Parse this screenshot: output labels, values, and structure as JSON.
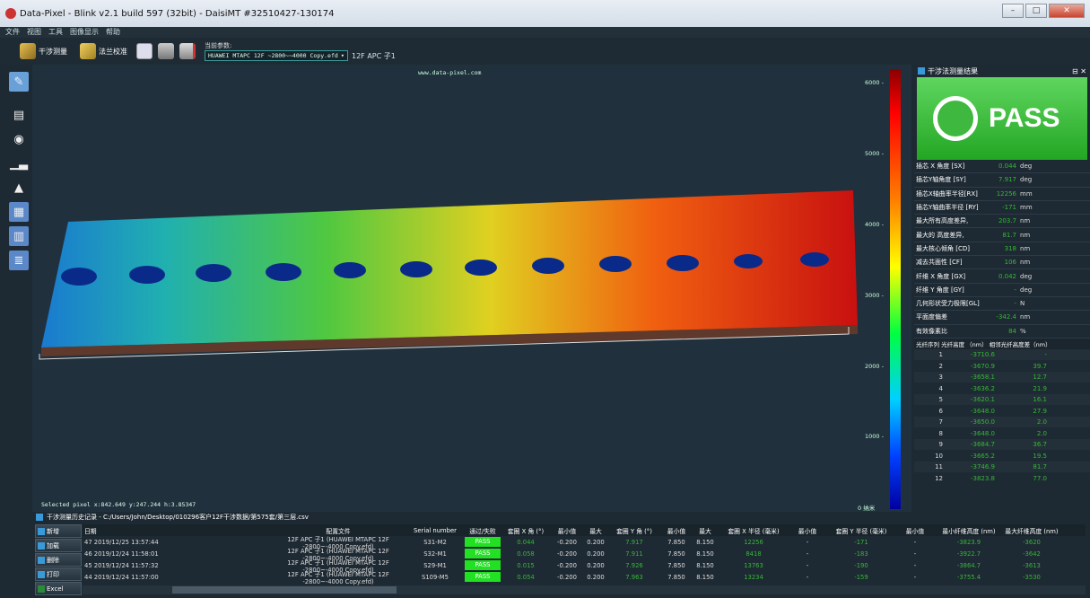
{
  "app": {
    "title": "Data-Pixel - Blink v2.1 build 597 (32bit) - DaisiMT #32510427-130174"
  },
  "menu": [
    "文件",
    "视图",
    "工具",
    "图像显示",
    "帮助"
  ],
  "toolbar": {
    "measure": "干涉测量",
    "calibrate": "法兰校准",
    "param_label": "当前参数:",
    "param_value": "HUAWEI MTAPC 12F ~2800~~4000 Copy.efd",
    "param_suffix": "12F APC 子1"
  },
  "view": {
    "url": "www.data-pixel.com",
    "selected_pixel": "Selected pixel x:842.649 y:247.244 h:3.85347",
    "colorbar_ticks": [
      "6000 -",
      "5000 -",
      "4000 -",
      "3000 -",
      "2000 -",
      "1000 -",
      "0 纳米"
    ]
  },
  "result": {
    "title": "干涉法测量结果",
    "status": "PASS",
    "colors": {
      "pass": "#22c022",
      "value_green": "#35b735"
    },
    "params": [
      {
        "k": "插芯 X 角度 [SX]",
        "v": "0.044",
        "u": "deg"
      },
      {
        "k": "插芯Y轴角度 [SY]",
        "v": "7.917",
        "u": "deg"
      },
      {
        "k": "插芯X轴曲率半径[RX]",
        "v": "12256",
        "u": "mm"
      },
      {
        "k": "插芯Y轴曲率半径 [RY]",
        "v": "-171",
        "u": "mm"
      },
      {
        "k": "最大所有高度差异,",
        "v": "203.7",
        "u": "nm"
      },
      {
        "k": "最大的 高度差异,",
        "v": "81.7",
        "u": "nm"
      },
      {
        "k": "最大核心倾角 [CD]",
        "v": "318",
        "u": "nm"
      },
      {
        "k": "减去共面性 [CF]",
        "v": "106",
        "u": "nm"
      },
      {
        "k": "纤维 X 角度 [GX]",
        "v": "0.042",
        "u": "deg"
      },
      {
        "k": "纤维 Y 角度 [GY]",
        "v": "-",
        "u": "deg"
      },
      {
        "k": "几何形状受力极限[GL]",
        "v": "-",
        "u": "N"
      },
      {
        "k": "平面度偏差",
        "v": "-342.4",
        "u": "nm"
      },
      {
        "k": "有效像素比",
        "v": "84",
        "u": "%"
      }
    ],
    "fiber_header": "光纤序列 光纤高度 （nm） 相邻光纤高度差（nm）",
    "fibers": [
      {
        "n": "1",
        "h": "-3710.6",
        "d": "-"
      },
      {
        "n": "2",
        "h": "-3670.9",
        "d": "39.7"
      },
      {
        "n": "3",
        "h": "-3658.1",
        "d": "12.7"
      },
      {
        "n": "4",
        "h": "-3636.2",
        "d": "21.9"
      },
      {
        "n": "5",
        "h": "-3620.1",
        "d": "16.1"
      },
      {
        "n": "6",
        "h": "-3648.0",
        "d": "27.9"
      },
      {
        "n": "7",
        "h": "-3650.0",
        "d": "2.0"
      },
      {
        "n": "8",
        "h": "-3648.0",
        "d": "2.0"
      },
      {
        "n": "9",
        "h": "-3684.7",
        "d": "36.7"
      },
      {
        "n": "10",
        "h": "-3665.2",
        "d": "19.5"
      },
      {
        "n": "11",
        "h": "-3746.9",
        "d": "81.7"
      },
      {
        "n": "12",
        "h": "-3823.8",
        "d": "77.0"
      }
    ]
  },
  "history": {
    "title": "干涉测量历史记录 - C:/Users/John/Desktop/010296客户12F干涉数据/第575套/第三层.csv",
    "buttons": [
      "新增",
      "加载",
      "删除",
      "打印",
      "Excel"
    ],
    "columns": [
      "日期",
      "配置文件",
      "Serial number",
      "通过/失败",
      "套圈 X 角 (°)",
      "最小值",
      "最大",
      "套圈 Y 角 (°)",
      "最小值",
      "最大",
      "套圈 X 半径 (毫米)",
      "最小值",
      "套圈 Y 半径 (毫米)",
      "最小值",
      "最小纤维高度 (nm)",
      "最大纤维高度 (nm)"
    ],
    "rows": [
      [
        "47 2019/12/25 13:57:44",
        "12F APC 子1 (HUAWEI MTAPC 12F -2800~-4000 Copy.efd)",
        "S31-M2",
        "PASS",
        "0.044",
        "-0.200",
        "0.200",
        "7.917",
        "7.850",
        "8.150",
        "12256",
        "-",
        "-171",
        "-",
        "-3823.9",
        "-3620"
      ],
      [
        "46 2019/12/24 11:58:01",
        "12F APC 子1 (HUAWEI MTAPC 12F -2800~-4000 Copy.efd)",
        "S32-M1",
        "PASS",
        "0.058",
        "-0.200",
        "0.200",
        "7.911",
        "7.850",
        "8.150",
        "8418",
        "-",
        "-183",
        "-",
        "-3922.7",
        "-3642"
      ],
      [
        "45 2019/12/24 11:57:32",
        "12F APC 子1 (HUAWEI MTAPC 12F -2800~-4000 Copy.efd)",
        "S29-M1",
        "PASS",
        "0.015",
        "-0.200",
        "0.200",
        "7.926",
        "7.850",
        "8.150",
        "13763",
        "-",
        "-190",
        "-",
        "-3864.7",
        "-3613"
      ],
      [
        "44 2019/12/24 11:57:00",
        "12F APC 子1 (HUAWEI MTAPC 12F -2800~-4000 Copy.efd)",
        "S109-M5",
        "PASS",
        "0.054",
        "-0.200",
        "0.200",
        "7.963",
        "7.850",
        "8.150",
        "13234",
        "-",
        "-159",
        "-",
        "-3755.4",
        "-3530"
      ]
    ]
  }
}
